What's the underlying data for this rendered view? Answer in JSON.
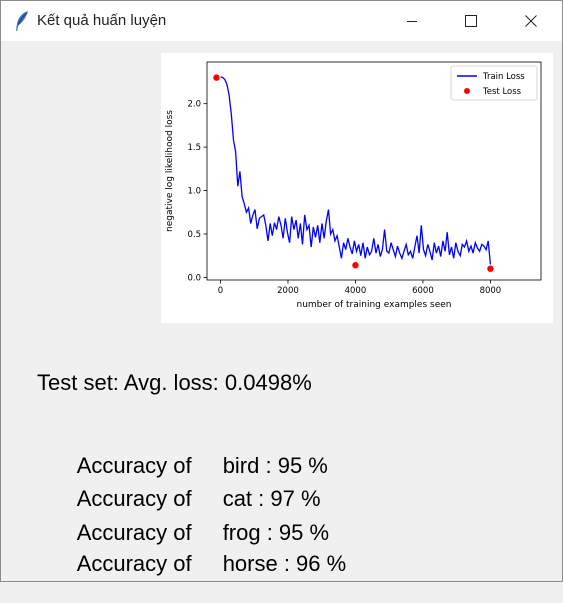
{
  "window": {
    "title": "Kết quả huấn luyện",
    "app_icon": "feather-icon",
    "controls": [
      "minimize-icon",
      "maximize-icon",
      "close-icon"
    ]
  },
  "chart_data": {
    "type": "line",
    "title": "",
    "xlabel": "number of training examples seen",
    "ylabel": "negative log likelihood loss",
    "xlim": [
      -400,
      9500
    ],
    "ylim": [
      -0.03,
      2.48
    ],
    "xticks": [
      0,
      2000,
      4000,
      6000,
      8000
    ],
    "yticks": [
      0.0,
      0.5,
      1.0,
      1.5,
      2.0
    ],
    "grid": false,
    "legend_position": "top-right",
    "series": [
      {
        "name": "Train Loss",
        "kind": "line",
        "color": "#0000ff",
        "x": [
          0,
          64,
          128,
          192,
          256,
          320,
          384,
          448,
          512,
          576,
          640,
          704,
          768,
          832,
          896,
          960,
          1024,
          1088,
          1152,
          1216,
          1280,
          1344,
          1408,
          1472,
          1536,
          1600,
          1664,
          1728,
          1792,
          1856,
          1920,
          1984,
          2048,
          2112,
          2176,
          2240,
          2304,
          2368,
          2432,
          2496,
          2560,
          2624,
          2688,
          2752,
          2816,
          2880,
          2944,
          3008,
          3072,
          3136,
          3200,
          3264,
          3328,
          3392,
          3456,
          3520,
          3584,
          3648,
          3712,
          3776,
          3840,
          3904,
          3968,
          4032,
          4096,
          4160,
          4224,
          4288,
          4352,
          4416,
          4480,
          4544,
          4608,
          4672,
          4736,
          4800,
          4864,
          4928,
          4992,
          5056,
          5120,
          5184,
          5248,
          5312,
          5376,
          5440,
          5504,
          5568,
          5632,
          5696,
          5760,
          5824,
          5888,
          5952,
          6016,
          6080,
          6144,
          6208,
          6272,
          6336,
          6400,
          6464,
          6528,
          6592,
          6656,
          6720,
          6784,
          6848,
          6912,
          6976,
          7040,
          7104,
          7168,
          7232,
          7296,
          7360,
          7424,
          7488,
          7552,
          7616,
          7680,
          7744,
          7808,
          7872,
          7936,
          8000
        ],
        "y": [
          2.31,
          2.3,
          2.28,
          2.22,
          2.1,
          1.88,
          1.58,
          1.45,
          1.05,
          1.22,
          0.93,
          0.85,
          0.75,
          0.8,
          0.62,
          0.72,
          0.78,
          0.56,
          0.68,
          0.7,
          0.72,
          0.6,
          0.42,
          0.62,
          0.48,
          0.63,
          0.55,
          0.7,
          0.6,
          0.45,
          0.68,
          0.52,
          0.4,
          0.7,
          0.55,
          0.66,
          0.45,
          0.62,
          0.38,
          0.72,
          0.55,
          0.6,
          0.35,
          0.58,
          0.46,
          0.6,
          0.4,
          0.62,
          0.45,
          0.65,
          0.78,
          0.5,
          0.55,
          0.42,
          0.48,
          0.35,
          0.22,
          0.4,
          0.32,
          0.45,
          0.35,
          0.27,
          0.42,
          0.3,
          0.38,
          0.25,
          0.4,
          0.22,
          0.35,
          0.26,
          0.3,
          0.45,
          0.28,
          0.38,
          0.24,
          0.32,
          0.55,
          0.3,
          0.28,
          0.4,
          0.32,
          0.24,
          0.36,
          0.28,
          0.22,
          0.3,
          0.38,
          0.26,
          0.3,
          0.22,
          0.35,
          0.48,
          0.28,
          0.6,
          0.32,
          0.25,
          0.38,
          0.3,
          0.2,
          0.4,
          0.28,
          0.36,
          0.24,
          0.42,
          0.3,
          0.52,
          0.26,
          0.35,
          0.22,
          0.4,
          0.3,
          0.25,
          0.38,
          0.35,
          0.42,
          0.3,
          0.36,
          0.28,
          0.4,
          0.34,
          0.3,
          0.38,
          0.36,
          0.32,
          0.42,
          0.15
        ]
      },
      {
        "name": "Test Loss",
        "kind": "scatter",
        "color": "#ff0000",
        "x": [
          -120,
          4000,
          8000
        ],
        "y": [
          2.3,
          0.14,
          0.1
        ]
      }
    ]
  },
  "results": {
    "loss_line": "Test set: Avg. loss: 0.0498%",
    "accuracy": [
      {
        "label": "Accuracy of",
        "value": "bird : 95 %"
      },
      {
        "label": "Accuracy of",
        "value": "cat : 97 %"
      },
      {
        "label": "Accuracy of",
        "value": "frog : 95 %"
      },
      {
        "label": "Accuracy of",
        "value": "horse : 96 %"
      }
    ]
  }
}
